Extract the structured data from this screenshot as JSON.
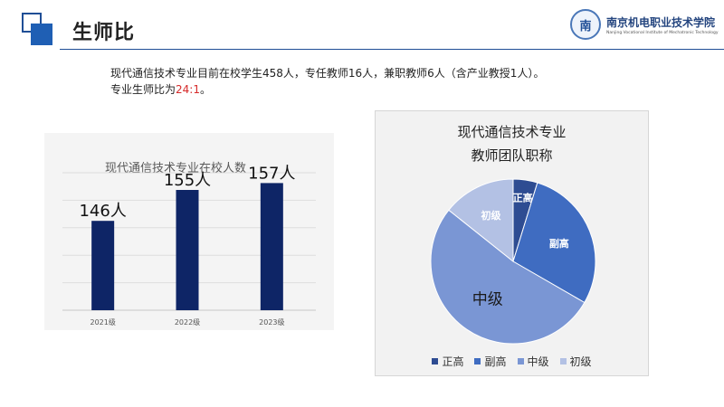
{
  "header": {
    "title": "生师比",
    "logo": {
      "seal_text": "南",
      "name": "南京机电职业技术学院",
      "english": "Nanjing Vocational Institute of Mechatronic Technology"
    }
  },
  "description": {
    "line1": "现代通信技术专业目前在校学生458人，专任教师16人，兼职教师6人（含产业教授1人）。",
    "line2_prefix": "专业生师比为",
    "ratio": "24:1",
    "line2_suffix": "。"
  },
  "colors": {
    "bar": "#0e2566",
    "pie": [
      "#2e4c92",
      "#3f6cc1",
      "#7a96d4",
      "#b3c1e4"
    ],
    "ratio_text": "#d62a2a"
  },
  "chart_data": [
    {
      "type": "bar",
      "title": "现代通信技术专业在校人数",
      "categories": [
        "2021级",
        "2022级",
        "2023级"
      ],
      "values": [
        146,
        155,
        157
      ],
      "data_labels": [
        "146人",
        "155人",
        "157人"
      ],
      "ylim": [
        120,
        160
      ],
      "grid": true,
      "legend": "none"
    },
    {
      "type": "pie",
      "title": [
        "现代通信技术专业",
        "教师团队职称"
      ],
      "labels": [
        "正高",
        "副高",
        "中级",
        "初级"
      ],
      "values": [
        1,
        6,
        11,
        3
      ],
      "legend": "bottom"
    }
  ]
}
